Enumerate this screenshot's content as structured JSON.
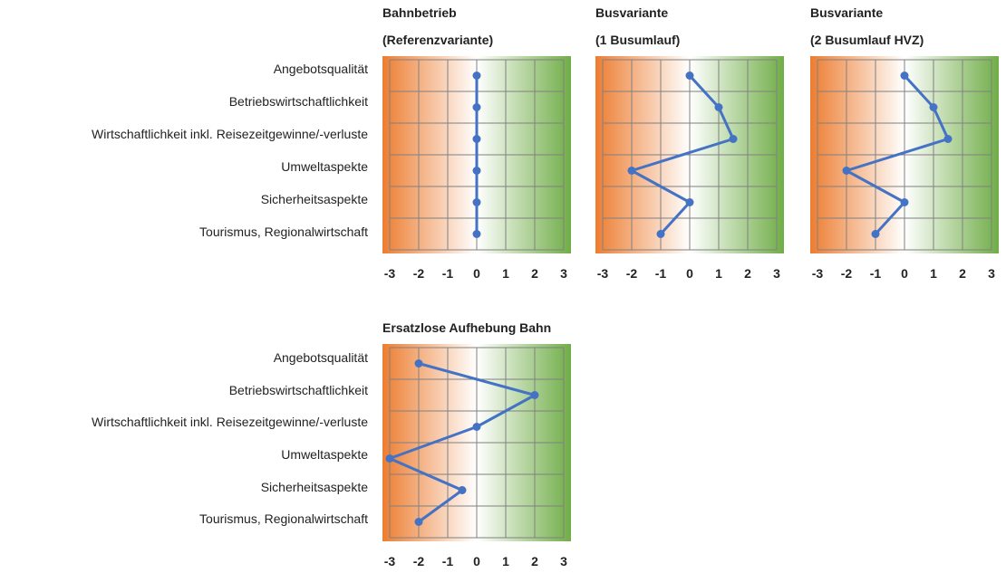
{
  "categories": [
    "Angebotsqualität",
    "Betriebswirtschaftlichkeit",
    "Wirtschaftlichkeit inkl. Reisezeitgewinne/-verluste",
    "Umweltaspekte",
    "Sicherheitsaspekte",
    "Tourismus, Regionalwirtschaft"
  ],
  "tick_labels": [
    "-3",
    "-2",
    "-1",
    "0",
    "1",
    "2",
    "3"
  ],
  "colors": {
    "negative": "#ed7d31",
    "neutral": "#ffffff",
    "positive": "#70ad47",
    "series": "#4472c4",
    "grid": "#808080"
  },
  "chart_data": [
    {
      "type": "line",
      "title_lines": [
        "Bahnbetrieb",
        "(Referenzvariante)"
      ],
      "categories": [
        "Angebotsqualität",
        "Betriebswirtschaftlichkeit",
        "Wirtschaftlichkeit inkl. Reisezeitgewinne/-verluste",
        "Umweltaspekte",
        "Sicherheitsaspekte",
        "Tourismus, Regionalwirtschaft"
      ],
      "values": [
        0,
        0,
        0,
        0,
        0,
        0
      ],
      "xlim": [
        -3,
        3
      ],
      "grid": true,
      "orientation": "horizontal-value-axis"
    },
    {
      "type": "line",
      "title_lines": [
        "Busvariante",
        "(1 Busumlauf)"
      ],
      "categories": [
        "Angebotsqualität",
        "Betriebswirtschaftlichkeit",
        "Wirtschaftlichkeit inkl. Reisezeitgewinne/-verluste",
        "Umweltaspekte",
        "Sicherheitsaspekte",
        "Tourismus, Regionalwirtschaft"
      ],
      "values": [
        0,
        1,
        1.5,
        -2,
        0,
        -1
      ],
      "xlim": [
        -3,
        3
      ],
      "grid": true,
      "orientation": "horizontal-value-axis"
    },
    {
      "type": "line",
      "title_lines": [
        "Busvariante",
        "(2 Busumlauf HVZ)"
      ],
      "categories": [
        "Angebotsqualität",
        "Betriebswirtschaftlichkeit",
        "Wirtschaftlichkeit inkl. Reisezeitgewinne/-verluste",
        "Umweltaspekte",
        "Sicherheitsaspekte",
        "Tourismus, Regionalwirtschaft"
      ],
      "values": [
        0,
        1,
        1.5,
        -2,
        0,
        -1
      ],
      "xlim": [
        -3,
        3
      ],
      "grid": true,
      "orientation": "horizontal-value-axis"
    },
    {
      "type": "line",
      "title_lines": [
        "Ersatzlose Aufhebung Bahn"
      ],
      "categories": [
        "Angebotsqualität",
        "Betriebswirtschaftlichkeit",
        "Wirtschaftlichkeit inkl. Reisezeitgewinne/-verluste",
        "Umweltaspekte",
        "Sicherheitsaspekte",
        "Tourismus, Regionalwirtschaft"
      ],
      "values": [
        -2,
        2,
        0,
        -3,
        -0.5,
        -2
      ],
      "xlim": [
        -3,
        3
      ],
      "grid": true,
      "orientation": "horizontal-value-axis"
    }
  ]
}
